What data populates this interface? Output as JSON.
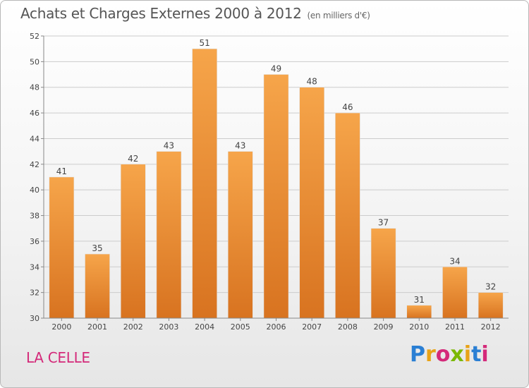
{
  "title": "Achats et Charges Externes 2000 à 2012",
  "unit_label": "(en milliers d'€)",
  "commune": "LA CELLE",
  "logo": {
    "text": "Proxiti",
    "letter_colors": [
      "#2a7fd4",
      "#e8a317",
      "#d42a7a",
      "#7ab800",
      "#e8a317",
      "#2a7fd4",
      "#d42a7a"
    ]
  },
  "colors": {
    "bar_light": "#f6a54a",
    "bar_dark": "#d87320",
    "axis": "#888888",
    "grid": "#cccccc",
    "text": "#444444",
    "commune": "#d42a7a"
  },
  "chart_data": {
    "type": "bar",
    "title": "Achats et Charges Externes 2000 à 2012",
    "xlabel": "",
    "ylabel": "",
    "categories": [
      "2000",
      "2001",
      "2002",
      "2003",
      "2004",
      "2005",
      "2006",
      "2007",
      "2008",
      "2009",
      "2010",
      "2011",
      "2012"
    ],
    "values": [
      41,
      35,
      42,
      43,
      51,
      43,
      49,
      48,
      46,
      37,
      31,
      34,
      32
    ],
    "ylim": [
      30,
      52
    ],
    "yticks": [
      30,
      32,
      34,
      36,
      38,
      40,
      42,
      44,
      46,
      48,
      50,
      52
    ],
    "grid": true,
    "legend": "none",
    "data_labels": true
  }
}
